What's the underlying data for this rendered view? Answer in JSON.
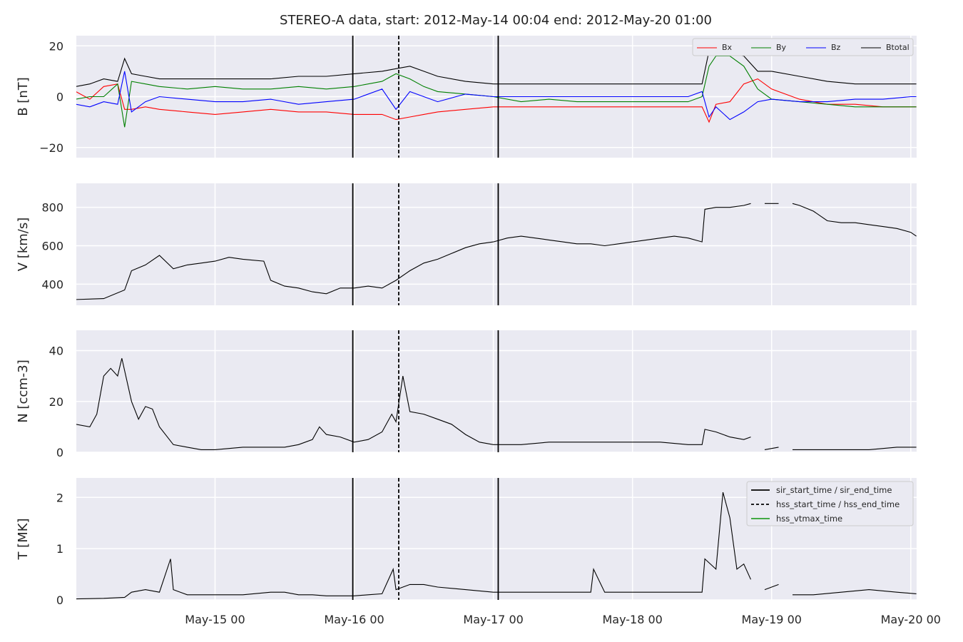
{
  "title": "STEREO-A data, start: 2012-May-14 00:04  end: 2012-May-20 01:00",
  "chart_data": {
    "type": "line",
    "x_unit": "days from 2012-May-14 00:00",
    "x_range": [
      0.003,
      6.042
    ],
    "x_ticks": [
      {
        "value": 1,
        "label": "May-15 00"
      },
      {
        "value": 2,
        "label": "May-16 00"
      },
      {
        "value": 3,
        "label": "May-17 00"
      },
      {
        "value": 4,
        "label": "May-18 00"
      },
      {
        "value": 5,
        "label": "May-19 00"
      },
      {
        "value": 6,
        "label": "May-20 00"
      }
    ],
    "event_lines": [
      {
        "name": "sir_start_time",
        "x": 1.99,
        "style": "solid"
      },
      {
        "name": "hss_start_time",
        "x": 2.32,
        "style": "dashed"
      },
      {
        "name": "sir_end_time",
        "x": 3.035,
        "style": "solid"
      }
    ],
    "panels": [
      {
        "ylabel": "B [nT]",
        "ylim": [
          -24,
          24
        ],
        "yticks": [
          -20,
          0,
          20
        ],
        "legend": {
          "placement": "top-right",
          "entries": [
            "Bx",
            "By",
            "Bz",
            "Btotal"
          ]
        },
        "series": [
          {
            "name": "Bx",
            "color": "#ff0000",
            "x": [
              0.0,
              0.1,
              0.2,
              0.3,
              0.35,
              0.4,
              0.5,
              0.6,
              0.8,
              1.0,
              1.2,
              1.4,
              1.6,
              1.8,
              2.0,
              2.2,
              2.3,
              2.4,
              2.5,
              2.6,
              2.8,
              3.0,
              3.2,
              3.4,
              3.6,
              3.8,
              4.0,
              4.2,
              4.4,
              4.5,
              4.55,
              4.6,
              4.7,
              4.8,
              4.9,
              5.0,
              5.2,
              5.4,
              5.6,
              5.8,
              6.0,
              6.04
            ],
            "y": [
              2,
              -1,
              4,
              5,
              -5,
              -5,
              -4,
              -5,
              -6,
              -7,
              -6,
              -5,
              -6,
              -6,
              -7,
              -7,
              -9,
              -8,
              -7,
              -6,
              -5,
              -4,
              -4,
              -4,
              -4,
              -4,
              -4,
              -4,
              -4,
              -4,
              -10,
              -3,
              -2,
              5,
              7,
              3,
              -1,
              -3,
              -3,
              -4,
              -4,
              -4
            ]
          },
          {
            "name": "By",
            "color": "#008000",
            "x": [
              0.0,
              0.1,
              0.2,
              0.3,
              0.35,
              0.4,
              0.5,
              0.6,
              0.8,
              1.0,
              1.2,
              1.4,
              1.6,
              1.8,
              2.0,
              2.2,
              2.3,
              2.4,
              2.5,
              2.6,
              2.8,
              3.0,
              3.2,
              3.4,
              3.6,
              3.8,
              4.0,
              4.2,
              4.4,
              4.5,
              4.55,
              4.6,
              4.7,
              4.8,
              4.9,
              5.0,
              5.2,
              5.4,
              5.6,
              5.8,
              6.0,
              6.04
            ],
            "y": [
              -1,
              0,
              0,
              5,
              -12,
              6,
              5,
              4,
              3,
              4,
              3,
              3,
              4,
              3,
              4,
              6,
              9,
              7,
              4,
              2,
              1,
              0,
              -2,
              -1,
              -2,
              -2,
              -2,
              -2,
              -2,
              0,
              12,
              16,
              16,
              12,
              3,
              -1,
              -2,
              -3,
              -4,
              -4,
              -4,
              -4
            ]
          },
          {
            "name": "Bz",
            "color": "#0000ff",
            "x": [
              0.0,
              0.1,
              0.2,
              0.3,
              0.35,
              0.4,
              0.5,
              0.6,
              0.8,
              1.0,
              1.2,
              1.4,
              1.6,
              1.8,
              2.0,
              2.2,
              2.3,
              2.4,
              2.5,
              2.6,
              2.8,
              3.0,
              3.2,
              3.4,
              3.6,
              3.8,
              4.0,
              4.2,
              4.4,
              4.5,
              4.55,
              4.6,
              4.7,
              4.8,
              4.9,
              5.0,
              5.2,
              5.4,
              5.6,
              5.8,
              6.0,
              6.04
            ],
            "y": [
              -3,
              -4,
              -2,
              -3,
              10,
              -6,
              -2,
              0,
              -1,
              -2,
              -2,
              -1,
              -3,
              -2,
              -1,
              3,
              -5,
              2,
              0,
              -2,
              1,
              0,
              0,
              0,
              0,
              0,
              0,
              0,
              0,
              2,
              -8,
              -4,
              -9,
              -6,
              -2,
              -1,
              -2,
              -2,
              -1,
              -1,
              0,
              0
            ]
          },
          {
            "name": "Btotal",
            "color": "#000000",
            "x": [
              0.0,
              0.1,
              0.2,
              0.3,
              0.35,
              0.4,
              0.5,
              0.6,
              0.8,
              1.0,
              1.2,
              1.4,
              1.6,
              1.8,
              2.0,
              2.2,
              2.3,
              2.4,
              2.5,
              2.6,
              2.8,
              3.0,
              3.2,
              3.4,
              3.6,
              3.8,
              4.0,
              4.2,
              4.4,
              4.5,
              4.55,
              4.6,
              4.7,
              4.8,
              4.9,
              5.0,
              5.2,
              5.4,
              5.6,
              5.8,
              6.0,
              6.04
            ],
            "y": [
              4,
              5,
              7,
              6,
              15,
              9,
              8,
              7,
              7,
              7,
              7,
              7,
              8,
              8,
              9,
              10,
              11,
              12,
              10,
              8,
              6,
              5,
              5,
              5,
              5,
              5,
              5,
              5,
              5,
              5,
              18,
              18,
              17,
              16,
              10,
              10,
              8,
              6,
              5,
              5,
              5,
              5
            ]
          }
        ]
      },
      {
        "ylabel": "V [km/s]",
        "ylim": [
          290,
          925
        ],
        "yticks": [
          400,
          600,
          800
        ],
        "series": [
          {
            "name": "V",
            "color": "#000000",
            "x": [
              0.0,
              0.2,
              0.35,
              0.4,
              0.5,
              0.6,
              0.7,
              0.8,
              0.9,
              1.0,
              1.1,
              1.2,
              1.35,
              1.4,
              1.5,
              1.6,
              1.7,
              1.8,
              1.9,
              2.0,
              2.1,
              2.2,
              2.3,
              2.4,
              2.5,
              2.6,
              2.7,
              2.8,
              2.9,
              3.0,
              3.1,
              3.2,
              3.3,
              3.4,
              3.5,
              3.6,
              3.7,
              3.8,
              3.9,
              4.0,
              4.1,
              4.2,
              4.3,
              4.4,
              4.5,
              4.52,
              4.6,
              4.7,
              4.8,
              4.85,
              null,
              4.95,
              5.05,
              null,
              5.15,
              5.2,
              5.3,
              5.4,
              5.5,
              5.6,
              5.7,
              5.8,
              5.9,
              6.0,
              6.04
            ],
            "y": [
              320,
              325,
              370,
              470,
              500,
              550,
              480,
              500,
              510,
              520,
              540,
              530,
              520,
              420,
              390,
              380,
              360,
              350,
              380,
              380,
              390,
              380,
              420,
              470,
              510,
              530,
              560,
              590,
              610,
              620,
              640,
              650,
              640,
              630,
              620,
              610,
              610,
              600,
              610,
              620,
              630,
              640,
              650,
              640,
              620,
              790,
              800,
              800,
              810,
              820,
              null,
              820,
              820,
              null,
              820,
              810,
              780,
              730,
              720,
              720,
              710,
              700,
              690,
              670,
              650
            ]
          }
        ]
      },
      {
        "ylabel": "N [ccm-3]",
        "ylim": [
          0,
          48
        ],
        "yticks": [
          0,
          20,
          40
        ],
        "series": [
          {
            "name": "N",
            "color": "#000000",
            "x": [
              0.0,
              0.1,
              0.15,
              0.2,
              0.25,
              0.3,
              0.33,
              0.4,
              0.45,
              0.5,
              0.55,
              0.6,
              0.7,
              0.8,
              0.9,
              1.0,
              1.2,
              1.4,
              1.5,
              1.6,
              1.7,
              1.75,
              1.8,
              1.9,
              2.0,
              2.1,
              2.2,
              2.27,
              2.3,
              2.35,
              2.4,
              2.5,
              2.6,
              2.7,
              2.8,
              2.9,
              3.0,
              3.2,
              3.4,
              3.6,
              3.8,
              4.0,
              4.2,
              4.4,
              4.5,
              4.52,
              4.6,
              4.7,
              4.8,
              4.85,
              null,
              4.95,
              5.05,
              null,
              5.15,
              5.3,
              5.5,
              5.7,
              5.9,
              6.04
            ],
            "y": [
              11,
              10,
              15,
              30,
              33,
              30,
              37,
              20,
              13,
              18,
              17,
              10,
              3,
              2,
              1,
              1,
              2,
              2,
              2,
              3,
              5,
              10,
              7,
              6,
              4,
              5,
              8,
              15,
              12,
              30,
              16,
              15,
              13,
              11,
              7,
              4,
              3,
              3,
              4,
              4,
              4,
              4,
              4,
              3,
              3,
              9,
              8,
              6,
              5,
              6,
              null,
              1,
              2,
              null,
              1,
              1,
              1,
              1,
              2,
              2
            ]
          }
        ]
      },
      {
        "ylabel": "T [MK]",
        "ylim": [
          0,
          2.38
        ],
        "yticks": [
          0,
          1,
          2
        ],
        "legend": {
          "placement": "top-right",
          "entries": [
            "sir_start_time / sir_end_time",
            "hss_start_time / hss_end_time",
            "hss_vtmax_time"
          ],
          "colors": [
            "#000000",
            "#000000",
            "#2ca02c"
          ],
          "styles": [
            "solid",
            "dashed",
            "solid"
          ]
        },
        "series": [
          {
            "name": "T",
            "color": "#000000",
            "x": [
              0.0,
              0.2,
              0.35,
              0.4,
              0.5,
              0.6,
              0.68,
              0.7,
              0.8,
              0.9,
              1.0,
              1.2,
              1.4,
              1.5,
              1.6,
              1.7,
              1.8,
              1.9,
              2.0,
              2.1,
              2.2,
              2.28,
              2.3,
              2.35,
              2.4,
              2.5,
              2.6,
              2.8,
              3.0,
              3.2,
              3.4,
              3.6,
              3.7,
              3.72,
              3.8,
              4.0,
              4.2,
              4.4,
              4.5,
              4.52,
              4.6,
              4.65,
              4.7,
              4.75,
              4.8,
              4.85,
              null,
              4.95,
              5.05,
              null,
              5.15,
              5.3,
              5.5,
              5.7,
              5.9,
              6.04
            ],
            "y": [
              0.02,
              0.03,
              0.05,
              0.15,
              0.2,
              0.15,
              0.8,
              0.2,
              0.1,
              0.1,
              0.1,
              0.1,
              0.15,
              0.15,
              0.1,
              0.1,
              0.08,
              0.08,
              0.08,
              0.1,
              0.12,
              0.6,
              0.2,
              0.25,
              0.3,
              0.3,
              0.25,
              0.2,
              0.15,
              0.15,
              0.15,
              0.15,
              0.15,
              0.6,
              0.15,
              0.15,
              0.15,
              0.15,
              0.15,
              0.8,
              0.6,
              2.1,
              1.6,
              0.6,
              0.7,
              0.4,
              null,
              0.2,
              0.3,
              null,
              0.1,
              0.1,
              0.15,
              0.2,
              0.15,
              0.12
            ]
          }
        ]
      }
    ]
  }
}
